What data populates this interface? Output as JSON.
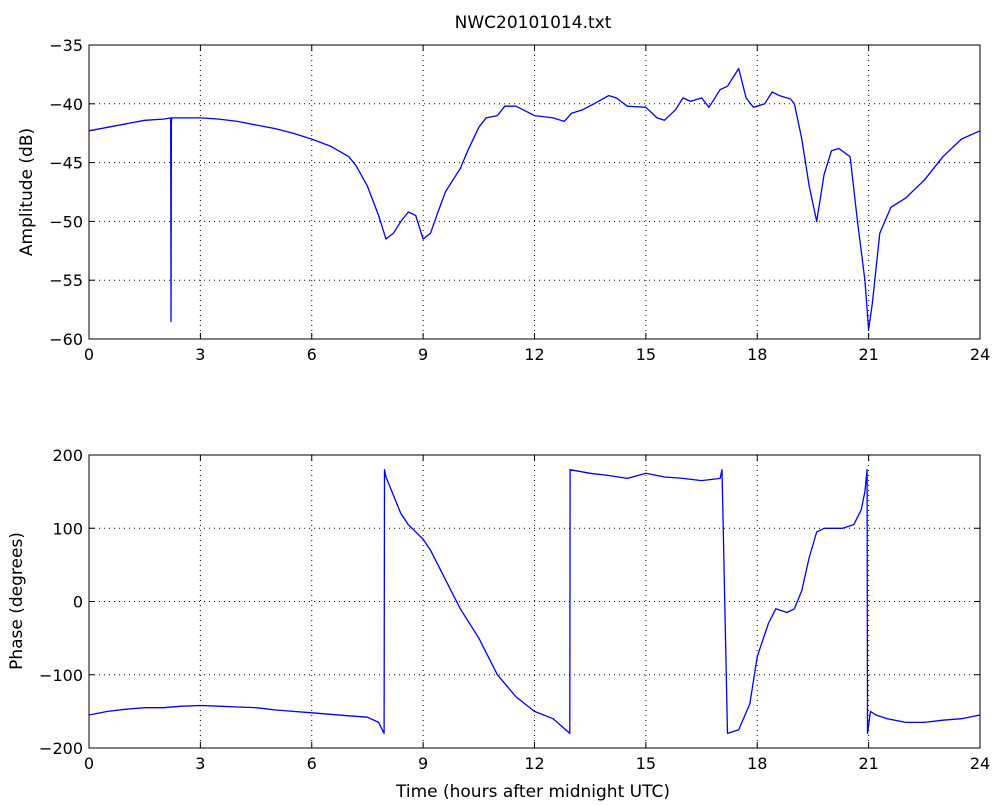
{
  "chart_data": [
    {
      "type": "line",
      "title": "NWC20101014.txt",
      "xlabel": "",
      "ylabel": "Amplitude (dB)",
      "xlim": [
        0,
        24
      ],
      "ylim": [
        -60,
        -35
      ],
      "xticks": [
        0,
        3,
        6,
        9,
        12,
        15,
        18,
        21,
        24
      ],
      "yticks": [
        -60,
        -55,
        -50,
        -45,
        -40,
        -35
      ],
      "xtick_labels": [
        "0",
        "3",
        "6",
        "9",
        "12",
        "15",
        "18",
        "21",
        "24"
      ],
      "ytick_labels": [
        "−60",
        "−55",
        "−50",
        "−45",
        "−40",
        "−35"
      ],
      "grid": true,
      "line_color": "#0000ff",
      "series": [
        {
          "x": [
            0,
            0.5,
            1,
            1.5,
            2,
            2.2,
            2.21,
            2.215,
            2.22,
            2.23,
            2.25,
            2.5,
            2.8,
            3,
            3.5,
            4,
            4.5,
            5,
            5.5,
            6,
            6.5,
            7,
            7.2,
            7.5,
            7.8,
            8,
            8.2,
            8.4,
            8.6,
            8.8,
            9,
            9.2,
            9.4,
            9.6,
            9.8,
            10,
            10.2,
            10.5,
            10.7,
            11,
            11.2,
            11.5,
            12,
            12.5,
            12.8,
            13,
            13.3,
            13.6,
            14,
            14.2,
            14.5,
            15,
            15.3,
            15.5,
            15.8,
            16,
            16.2,
            16.5,
            16.7,
            17,
            17.2,
            17.4,
            17.5,
            17.7,
            17.9,
            18,
            18.2,
            18.4,
            18.6,
            18.9,
            19,
            19.2,
            19.4,
            19.6,
            19.8,
            20,
            20.2,
            20.5,
            20.7,
            20.9,
            21,
            21.1,
            21.3,
            21.6,
            22,
            22.5,
            23,
            23.5,
            24
          ],
          "y": [
            -42.3,
            -42,
            -41.7,
            -41.4,
            -41.3,
            -41.2,
            -58.5,
            -50,
            -41.5,
            -41.2,
            -41.2,
            -41.2,
            -41.2,
            -41.2,
            -41.3,
            -41.5,
            -41.8,
            -42.1,
            -42.5,
            -43,
            -43.6,
            -44.5,
            -45.3,
            -47,
            -49.5,
            -51.5,
            -51,
            -50,
            -49.2,
            -49.5,
            -51.5,
            -51,
            -49.2,
            -47.5,
            -46.5,
            -45.5,
            -44,
            -42,
            -41.2,
            -41,
            -40.2,
            -40.2,
            -41,
            -41.2,
            -41.5,
            -40.8,
            -40.5,
            -40,
            -39.3,
            -39.5,
            -40.2,
            -40.3,
            -41.2,
            -41.4,
            -40.5,
            -39.5,
            -39.8,
            -39.5,
            -40.3,
            -38.8,
            -38.5,
            -37.5,
            -37,
            -39.5,
            -40.3,
            -40.2,
            -40,
            -39,
            -39.3,
            -39.6,
            -40,
            -43,
            -47,
            -50,
            -46,
            -44,
            -43.8,
            -44.5,
            -50,
            -55,
            -59.2,
            -57,
            -51,
            -48.8,
            -48,
            -46.5,
            -44.5,
            -43,
            -42.3
          ]
        }
      ]
    },
    {
      "type": "line",
      "title": "",
      "xlabel": "Time (hours after midnight UTC)",
      "ylabel": "Phase (degrees)",
      "xlim": [
        0,
        24
      ],
      "ylim": [
        -200,
        200
      ],
      "xticks": [
        0,
        3,
        6,
        9,
        12,
        15,
        18,
        21,
        24
      ],
      "yticks": [
        -200,
        -100,
        0,
        100,
        200
      ],
      "xtick_labels": [
        "0",
        "3",
        "6",
        "9",
        "12",
        "15",
        "18",
        "21",
        "24"
      ],
      "ytick_labels": [
        "−200",
        "−100",
        "0",
        "100",
        "200"
      ],
      "grid": true,
      "line_color": "#0000ff",
      "series": [
        {
          "x": [
            0,
            0.5,
            1,
            1.5,
            2,
            2.5,
            3,
            3.5,
            4,
            4.5,
            5,
            5.5,
            6,
            6.5,
            7,
            7.5,
            7.8,
            7.95,
            7.96,
            8.0,
            8.2,
            8.4,
            8.6,
            9,
            9.2,
            9.5,
            10,
            10.5,
            11,
            11.5,
            12,
            12.5,
            12.95,
            12.96,
            13.5,
            14,
            14.5,
            15,
            15.5,
            16,
            16.5,
            17,
            17.05,
            17.2,
            17.5,
            17.8,
            18,
            18.3,
            18.5,
            18.8,
            19,
            19.2,
            19.4,
            19.6,
            19.8,
            20,
            20.3,
            20.6,
            20.8,
            20.9,
            20.96,
            20.97,
            21.05,
            21.2,
            21.5,
            22,
            22.5,
            23,
            23.5,
            24
          ],
          "y": [
            -155,
            -150,
            -147,
            -145,
            -145,
            -143,
            -142,
            -143,
            -144,
            -145,
            -148,
            -150,
            -152,
            -154,
            -156,
            -158,
            -165,
            -180,
            180,
            170,
            145,
            120,
            105,
            85,
            70,
            40,
            -10,
            -50,
            -100,
            -130,
            -150,
            -160,
            -180,
            180,
            175,
            172,
            168,
            175,
            170,
            168,
            165,
            168,
            180,
            -180,
            -175,
            -140,
            -75,
            -30,
            -10,
            -15,
            -10,
            15,
            60,
            95,
            100,
            100,
            100,
            105,
            125,
            150,
            180,
            -180,
            -150,
            -155,
            -160,
            -165,
            -165,
            -162,
            -160,
            -155
          ]
        }
      ]
    }
  ]
}
